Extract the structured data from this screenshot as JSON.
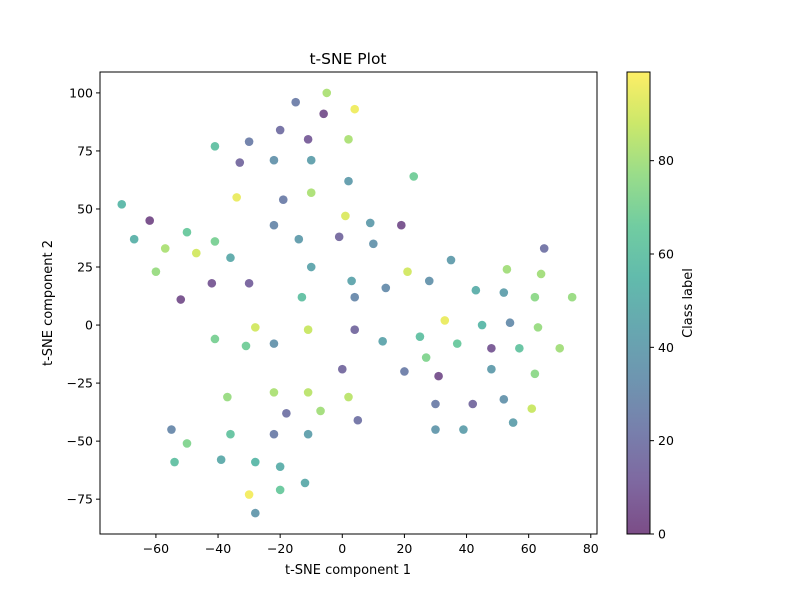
{
  "chart_data": {
    "type": "scatter",
    "title": "t-SNE Plot",
    "xlabel": "t-SNE component 1",
    "ylabel": "t-SNE component 2",
    "xlim": [
      -78,
      82
    ],
    "ylim": [
      -90,
      109
    ],
    "x_ticks": [
      -60,
      -40,
      -20,
      0,
      20,
      40,
      60,
      80
    ],
    "y_ticks": [
      -75,
      -50,
      -25,
      0,
      25,
      50,
      75,
      100
    ],
    "colorbar": {
      "label": "Class label",
      "min": 0,
      "max": 99,
      "ticks": [
        0,
        20,
        40,
        60,
        80
      ],
      "colormap": "viridis"
    },
    "marker_alpha": 0.7,
    "grid": false,
    "points": [
      {
        "x": -5,
        "y": 100,
        "c": 82
      },
      {
        "x": 4,
        "y": 93,
        "c": 96
      },
      {
        "x": -15,
        "y": 96,
        "c": 25
      },
      {
        "x": -6,
        "y": 91,
        "c": 5
      },
      {
        "x": -20,
        "y": 84,
        "c": 18
      },
      {
        "x": -11,
        "y": 80,
        "c": 10
      },
      {
        "x": -30,
        "y": 79,
        "c": 25
      },
      {
        "x": -41,
        "y": 77,
        "c": 60
      },
      {
        "x": 2,
        "y": 80,
        "c": 82
      },
      {
        "x": -33,
        "y": 70,
        "c": 15
      },
      {
        "x": -22,
        "y": 71,
        "c": 35
      },
      {
        "x": -10,
        "y": 71,
        "c": 42
      },
      {
        "x": 2,
        "y": 62,
        "c": 40
      },
      {
        "x": 23,
        "y": 64,
        "c": 68
      },
      {
        "x": -10,
        "y": 57,
        "c": 82
      },
      {
        "x": -34,
        "y": 55,
        "c": 95
      },
      {
        "x": -19,
        "y": 54,
        "c": 25
      },
      {
        "x": -71,
        "y": 52,
        "c": 55
      },
      {
        "x": -62,
        "y": 45,
        "c": 3
      },
      {
        "x": -50,
        "y": 40,
        "c": 65
      },
      {
        "x": -22,
        "y": 43,
        "c": 30
      },
      {
        "x": 1,
        "y": 47,
        "c": 92
      },
      {
        "x": 9,
        "y": 44,
        "c": 40
      },
      {
        "x": 19,
        "y": 43,
        "c": 5
      },
      {
        "x": -67,
        "y": 37,
        "c": 52
      },
      {
        "x": -41,
        "y": 36,
        "c": 70
      },
      {
        "x": -14,
        "y": 37,
        "c": 40
      },
      {
        "x": -1,
        "y": 38,
        "c": 15
      },
      {
        "x": 10,
        "y": 35,
        "c": 35
      },
      {
        "x": -57,
        "y": 33,
        "c": 82
      },
      {
        "x": -47,
        "y": 31,
        "c": 90
      },
      {
        "x": -36,
        "y": 29,
        "c": 48
      },
      {
        "x": 35,
        "y": 28,
        "c": 40
      },
      {
        "x": 65,
        "y": 33,
        "c": 20
      },
      {
        "x": -60,
        "y": 23,
        "c": 78
      },
      {
        "x": -10,
        "y": 25,
        "c": 45
      },
      {
        "x": 21,
        "y": 23,
        "c": 90
      },
      {
        "x": 53,
        "y": 24,
        "c": 80
      },
      {
        "x": 64,
        "y": 22,
        "c": 80
      },
      {
        "x": -42,
        "y": 18,
        "c": 8
      },
      {
        "x": -30,
        "y": 18,
        "c": 12
      },
      {
        "x": 3,
        "y": 19,
        "c": 45
      },
      {
        "x": 28,
        "y": 19,
        "c": 35
      },
      {
        "x": 14,
        "y": 16,
        "c": 32
      },
      {
        "x": 43,
        "y": 15,
        "c": 50
      },
      {
        "x": 52,
        "y": 14,
        "c": 42
      },
      {
        "x": -52,
        "y": 11,
        "c": 5
      },
      {
        "x": -13,
        "y": 12,
        "c": 60
      },
      {
        "x": 4,
        "y": 12,
        "c": 30
      },
      {
        "x": 62,
        "y": 12,
        "c": 75
      },
      {
        "x": 74,
        "y": 12,
        "c": 78
      },
      {
        "x": 33,
        "y": 2,
        "c": 95
      },
      {
        "x": -28,
        "y": -1,
        "c": 90
      },
      {
        "x": -11,
        "y": -2,
        "c": 88
      },
      {
        "x": 4,
        "y": -2,
        "c": 15
      },
      {
        "x": 45,
        "y": 0,
        "c": 55
      },
      {
        "x": 54,
        "y": 1,
        "c": 32
      },
      {
        "x": 63,
        "y": -1,
        "c": 78
      },
      {
        "x": -41,
        "y": -6,
        "c": 70
      },
      {
        "x": -31,
        "y": -9,
        "c": 68
      },
      {
        "x": -22,
        "y": -8,
        "c": 35
      },
      {
        "x": 13,
        "y": -7,
        "c": 45
      },
      {
        "x": 25,
        "y": -5,
        "c": 60
      },
      {
        "x": 37,
        "y": -8,
        "c": 65
      },
      {
        "x": 48,
        "y": -10,
        "c": 8
      },
      {
        "x": 57,
        "y": -10,
        "c": 62
      },
      {
        "x": 70,
        "y": -10,
        "c": 80
      },
      {
        "x": 27,
        "y": -14,
        "c": 72
      },
      {
        "x": 0,
        "y": -19,
        "c": 15
      },
      {
        "x": 20,
        "y": -20,
        "c": 25
      },
      {
        "x": 31,
        "y": -22,
        "c": 5
      },
      {
        "x": 48,
        "y": -19,
        "c": 40
      },
      {
        "x": 62,
        "y": -21,
        "c": 75
      },
      {
        "x": -22,
        "y": -29,
        "c": 82
      },
      {
        "x": -11,
        "y": -29,
        "c": 85
      },
      {
        "x": -37,
        "y": -31,
        "c": 78
      },
      {
        "x": 2,
        "y": -31,
        "c": 85
      },
      {
        "x": -18,
        "y": -38,
        "c": 20
      },
      {
        "x": -7,
        "y": -37,
        "c": 80
      },
      {
        "x": 30,
        "y": -34,
        "c": 25
      },
      {
        "x": 42,
        "y": -34,
        "c": 15
      },
      {
        "x": 52,
        "y": -32,
        "c": 35
      },
      {
        "x": 61,
        "y": -36,
        "c": 88
      },
      {
        "x": 5,
        "y": -41,
        "c": 20
      },
      {
        "x": 55,
        "y": -42,
        "c": 42
      },
      {
        "x": -55,
        "y": -45,
        "c": 30
      },
      {
        "x": -36,
        "y": -47,
        "c": 62
      },
      {
        "x": -22,
        "y": -47,
        "c": 25
      },
      {
        "x": -11,
        "y": -47,
        "c": 42
      },
      {
        "x": 30,
        "y": -45,
        "c": 38
      },
      {
        "x": 39,
        "y": -45,
        "c": 42
      },
      {
        "x": -50,
        "y": -51,
        "c": 72
      },
      {
        "x": -54,
        "y": -59,
        "c": 60
      },
      {
        "x": -39,
        "y": -58,
        "c": 48
      },
      {
        "x": -28,
        "y": -59,
        "c": 55
      },
      {
        "x": -20,
        "y": -61,
        "c": 50
      },
      {
        "x": -12,
        "y": -68,
        "c": 48
      },
      {
        "x": -20,
        "y": -71,
        "c": 65
      },
      {
        "x": -30,
        "y": -73,
        "c": 97
      },
      {
        "x": -28,
        "y": -81,
        "c": 38
      }
    ]
  }
}
